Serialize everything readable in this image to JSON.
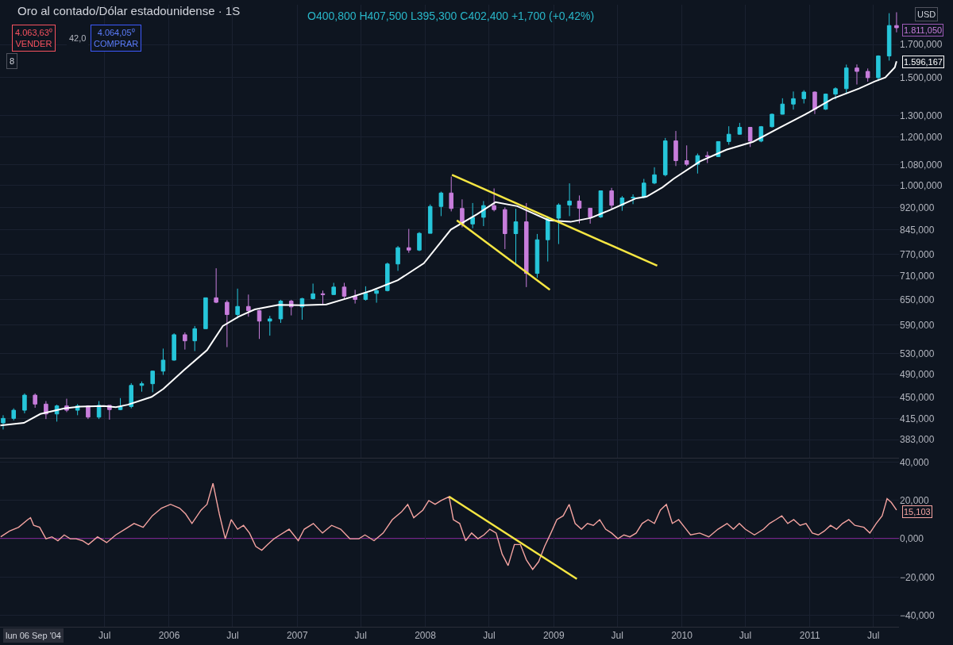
{
  "chart_data": [
    {
      "type": "candlestick",
      "title": "Oro al contado/Dólar estadounidense · 1S",
      "subtitle": "O400,800 H407,500 L395,300 C402,400 +1,700 (+0,42%)",
      "x": [
        "2004-09-15",
        "2004-10-15",
        "2004-11-15",
        "2004-12-15",
        "2005-01-15",
        "2005-02-15",
        "2005-03-15",
        "2005-04-15",
        "2005-05-15",
        "2005-06-15",
        "2005-07-15",
        "2005-08-15",
        "2005-09-15",
        "2005-10-15",
        "2005-11-15",
        "2005-12-15",
        "2006-01-15",
        "2006-02-15",
        "2006-03-15",
        "2006-04-15",
        "2006-05-15",
        "2006-06-15",
        "2006-07-15",
        "2006-08-15",
        "2006-09-15",
        "2006-10-15",
        "2006-11-15",
        "2006-12-15",
        "2007-01-15",
        "2007-02-15",
        "2007-03-15",
        "2007-04-15",
        "2007-05-15",
        "2007-06-15",
        "2007-07-15",
        "2007-08-15",
        "2007-09-15",
        "2007-10-15",
        "2007-11-15",
        "2007-12-15",
        "2008-01-15",
        "2008-02-15",
        "2008-03-15",
        "2008-04-15",
        "2008-05-15",
        "2008-06-15",
        "2008-07-15",
        "2008-08-15",
        "2008-09-15",
        "2008-10-15",
        "2008-11-15",
        "2008-12-15",
        "2009-01-15",
        "2009-02-15",
        "2009-03-15",
        "2009-04-15",
        "2009-05-15",
        "2009-06-15",
        "2009-07-15",
        "2009-08-15",
        "2009-09-15",
        "2009-10-15",
        "2009-11-15",
        "2009-12-15",
        "2010-01-15",
        "2010-02-15",
        "2010-03-15",
        "2010-04-15",
        "2010-05-15",
        "2010-06-15",
        "2010-07-15",
        "2010-08-15",
        "2010-09-15",
        "2010-10-15",
        "2010-11-15",
        "2010-12-15",
        "2011-01-15",
        "2011-02-15",
        "2011-03-15",
        "2011-04-15",
        "2011-05-15",
        "2011-06-15",
        "2011-07-15",
        "2011-08-15",
        "2011-09-05"
      ],
      "ohlc": [
        [
          408,
          420,
          398,
          415
        ],
        [
          415,
          431,
          412,
          428
        ],
        [
          428,
          456,
          423,
          453
        ],
        [
          453,
          456,
          432,
          438
        ],
        [
          438,
          443,
          414,
          422
        ],
        [
          422,
          437,
          410,
          435
        ],
        [
          435,
          447,
          425,
          428
        ],
        [
          428,
          438,
          420,
          435
        ],
        [
          435,
          436,
          414,
          417
        ],
        [
          417,
          443,
          414,
          436
        ],
        [
          436,
          436,
          413,
          429
        ],
        [
          429,
          448,
          428,
          434
        ],
        [
          434,
          474,
          431,
          470
        ],
        [
          470,
          477,
          459,
          473
        ],
        [
          473,
          497,
          458,
          496
        ],
        [
          496,
          540,
          489,
          517
        ],
        [
          517,
          572,
          516,
          569
        ],
        [
          569,
          574,
          538,
          556
        ],
        [
          556,
          588,
          535,
          582
        ],
        [
          582,
          654,
          582,
          654
        ],
        [
          654,
          731,
          641,
          643
        ],
        [
          643,
          648,
          543,
          614
        ],
        [
          614,
          677,
          605,
          633
        ],
        [
          633,
          662,
          609,
          623
        ],
        [
          623,
          625,
          560,
          599
        ],
        [
          599,
          611,
          567,
          604
        ],
        [
          604,
          649,
          595,
          646
        ],
        [
          646,
          649,
          612,
          632
        ],
        [
          632,
          654,
          602,
          652
        ],
        [
          652,
          690,
          650,
          664
        ],
        [
          664,
          672,
          636,
          662
        ],
        [
          662,
          692,
          661,
          681
        ],
        [
          681,
          692,
          651,
          658
        ],
        [
          658,
          674,
          640,
          650
        ],
        [
          650,
          683,
          647,
          665
        ],
        [
          665,
          676,
          642,
          672
        ],
        [
          672,
          747,
          670,
          743
        ],
        [
          743,
          795,
          724,
          790
        ],
        [
          790,
          848,
          775,
          783
        ],
        [
          783,
          838,
          780,
          834
        ],
        [
          834,
          930,
          834,
          923
        ],
        [
          923,
          976,
          890,
          971
        ],
        [
          971,
          1033,
          906,
          916
        ],
        [
          916,
          948,
          853,
          864
        ],
        [
          864,
          935,
          850,
          886
        ],
        [
          886,
          942,
          857,
          926
        ],
        [
          926,
          988,
          906,
          912
        ],
        [
          912,
          920,
          786,
          833
        ],
        [
          833,
          915,
          740,
          871
        ],
        [
          871,
          935,
          681,
          717
        ],
        [
          717,
          832,
          705,
          814
        ],
        [
          814,
          889,
          750,
          883
        ],
        [
          883,
          934,
          801,
          928
        ],
        [
          928,
          1007,
          890,
          942
        ],
        [
          942,
          962,
          866,
          917
        ],
        [
          917,
          918,
          865,
          887
        ],
        [
          887,
          980,
          884,
          979
        ],
        [
          979,
          990,
          914,
          927
        ],
        [
          927,
          960,
          908,
          953
        ],
        [
          953,
          966,
          931,
          955
        ],
        [
          955,
          1024,
          952,
          1008
        ],
        [
          1008,
          1070,
          1004,
          1040
        ],
        [
          1040,
          1195,
          1034,
          1182
        ],
        [
          1182,
          1227,
          1075,
          1097
        ],
        [
          1097,
          1162,
          1075,
          1082
        ],
        [
          1082,
          1127,
          1045,
          1118
        ],
        [
          1118,
          1135,
          1087,
          1114
        ],
        [
          1114,
          1180,
          1112,
          1179
        ],
        [
          1179,
          1249,
          1165,
          1212
        ],
        [
          1212,
          1265,
          1210,
          1244
        ],
        [
          1244,
          1245,
          1155,
          1181
        ],
        [
          1181,
          1250,
          1176,
          1247
        ],
        [
          1247,
          1310,
          1243,
          1307
        ],
        [
          1307,
          1388,
          1306,
          1358
        ],
        [
          1358,
          1424,
          1330,
          1386
        ],
        [
          1386,
          1431,
          1361,
          1421
        ],
        [
          1421,
          1424,
          1308,
          1332
        ],
        [
          1332,
          1413,
          1328,
          1410
        ],
        [
          1410,
          1447,
          1382,
          1439
        ],
        [
          1439,
          1576,
          1417,
          1556
        ],
        [
          1556,
          1577,
          1462,
          1536
        ],
        [
          1536,
          1553,
          1478,
          1500
        ],
        [
          1500,
          1632,
          1481,
          1628
        ],
        [
          1628,
          1913,
          1600,
          1826
        ],
        [
          1826,
          1920,
          1780,
          1811.05
        ]
      ],
      "colors": [
        "#26c6da",
        "#26c6da",
        "#26c6da",
        "#c77ddb",
        "#c77ddb",
        "#26c6da",
        "#c77ddb",
        "#26c6da",
        "#c77ddb",
        "#26c6da",
        "#c77ddb",
        "#26c6da",
        "#26c6da",
        "#26c6da",
        "#26c6da",
        "#26c6da",
        "#26c6da",
        "#c77ddb",
        "#26c6da",
        "#26c6da",
        "#c77ddb",
        "#c77ddb",
        "#26c6da",
        "#c77ddb",
        "#c77ddb",
        "#26c6da",
        "#26c6da",
        "#c77ddb",
        "#26c6da",
        "#26c6da",
        "#c77ddb",
        "#26c6da",
        "#c77ddb",
        "#c77ddb",
        "#26c6da",
        "#26c6da",
        "#26c6da",
        "#26c6da",
        "#c77ddb",
        "#26c6da",
        "#26c6da",
        "#26c6da",
        "#c77ddb",
        "#c77ddb",
        "#26c6da",
        "#26c6da",
        "#c77ddb",
        "#c77ddb",
        "#26c6da",
        "#c77ddb",
        "#26c6da",
        "#26c6da",
        "#26c6da",
        "#26c6da",
        "#c77ddb",
        "#c77ddb",
        "#26c6da",
        "#c77ddb",
        "#26c6da",
        "#26c6da",
        "#26c6da",
        "#26c6da",
        "#26c6da",
        "#c77ddb",
        "#c77ddb",
        "#26c6da",
        "#c77ddb",
        "#26c6da",
        "#26c6da",
        "#26c6da",
        "#c77ddb",
        "#26c6da",
        "#26c6da",
        "#26c6da",
        "#26c6da",
        "#26c6da",
        "#c77ddb",
        "#26c6da",
        "#26c6da",
        "#26c6da",
        "#c77ddb",
        "#c77ddb",
        "#26c6da",
        "#26c6da",
        "#c77ddb"
      ],
      "series": [
        {
          "type": "line",
          "color": "#ffffff",
          "x": [
            "2004-09-07",
            "2004-11-13",
            "2004-12-30",
            "2005-03-08",
            "2005-04-22",
            "2005-06-29",
            "2005-08-02",
            "2005-09-05",
            "2005-11-12",
            "2005-12-16",
            "2006-02-11",
            "2006-04-19",
            "2006-06-03",
            "2006-07-18",
            "2006-09-02",
            "2006-11-09",
            "2007-01-16",
            "2007-03-25",
            "2007-06-01",
            "2007-08-01",
            "2007-10-15",
            "2007-12-28",
            "2008-03-14",
            "2008-05-28",
            "2008-07-19",
            "2008-09-19",
            "2008-12-18",
            "2009-02-18",
            "2009-04-17",
            "2009-06-11",
            "2009-08-24",
            "2009-09-23",
            "2009-11-07",
            "2009-12-09",
            "2010-02-22",
            "2010-05-08",
            "2010-07-23",
            "2010-10-06",
            "2010-12-19",
            "2011-03-07",
            "2011-05-21",
            "2011-07-05",
            "2011-08-04",
            "2011-08-31",
            "2011-09-05"
          ],
          "values": [
            404,
            408,
            422,
            431,
            434,
            435,
            433,
            437,
            450,
            464,
            497,
            537,
            588,
            609,
            626,
            637,
            636,
            638,
            655,
            672,
            699,
            745,
            846,
            897,
            938,
            924,
            876,
            871,
            884,
            911,
            952,
            958,
            992,
            1025,
            1094,
            1143,
            1178,
            1242,
            1306,
            1386,
            1440,
            1479,
            1501,
            1559,
            1596.167
          ]
        },
        {
          "type": "line",
          "color": "#f5e642",
          "x": [
            "2008-03-17",
            "2009-10-23"
          ],
          "values": [
            1040,
            738
          ]
        },
        {
          "type": "line",
          "color": "#f5e642",
          "x": [
            "2008-03-31",
            "2008-12-21"
          ],
          "values": [
            876,
            674
          ]
        }
      ],
      "xlim": [
        "2004-09-06",
        "2011-09-12"
      ],
      "xticks": [
        {
          "value": "2005-07-01",
          "label": null
        },
        {
          "value": "2006-01-01",
          "label": null
        },
        {
          "value": "2006-07-01",
          "label": null
        },
        {
          "value": "2007-01-01",
          "label": null
        },
        {
          "value": "2007-07-01",
          "label": null
        },
        {
          "value": "2008-01-01",
          "label": null
        },
        {
          "value": "2008-07-01",
          "label": null
        },
        {
          "value": "2009-01-01",
          "label": null
        },
        {
          "value": "2009-07-01",
          "label": null
        },
        {
          "value": "2010-01-01",
          "label": null
        },
        {
          "value": "2010-07-01",
          "label": null
        },
        {
          "value": "2011-01-01",
          "label": null
        },
        {
          "value": "2011-07-01",
          "label": null
        }
      ],
      "ylim": [
        358,
        1975
      ],
      "log": true,
      "yticks": [
        {
          "value": 383,
          "label": "383,000"
        },
        {
          "value": 415,
          "label": "415,000"
        },
        {
          "value": 450,
          "label": "450,000"
        },
        {
          "value": 490,
          "label": "490,000"
        },
        {
          "value": 530,
          "label": "530,000"
        },
        {
          "value": 590,
          "label": "590,000"
        },
        {
          "value": 650,
          "label": "650,000"
        },
        {
          "value": 710,
          "label": "710,000"
        },
        {
          "value": 770,
          "label": "770,000"
        },
        {
          "value": 845,
          "label": "845,000"
        },
        {
          "value": 920,
          "label": "920,000"
        },
        {
          "value": 1000,
          "label": "1.000,000"
        },
        {
          "value": 1080,
          "label": "1.080,000"
        },
        {
          "value": 1200,
          "label": "1.200,000"
        },
        {
          "value": 1300,
          "label": "1.300,000"
        },
        {
          "value": 1500,
          "label": "1.500,000"
        },
        {
          "value": 1700,
          "label": "1.700,000"
        }
      ],
      "grid": true,
      "tick_labels": "y",
      "annotations": [
        "4.063,63⁰\nVENDER",
        "42,0",
        "4.064,05⁰\nCOMPRAR",
        "8",
        "USD",
        "1.811,050",
        "1.596,167"
      ]
    },
    {
      "type": "line",
      "series": [
        {
          "color": "#f4a3a0",
          "x": [
            "2004-09-08",
            "2004-10-03",
            "2004-10-29",
            "2004-11-24",
            "2004-12-02",
            "2004-12-11",
            "2004-12-28",
            "2005-01-15",
            "2005-02-01",
            "2005-02-18",
            "2005-03-08",
            "2005-03-25",
            "2005-04-11",
            "2005-04-29",
            "2005-05-16",
            "2005-06-11",
            "2005-07-07",
            "2005-08-02",
            "2005-08-28",
            "2005-09-23",
            "2005-10-19",
            "2005-11-14",
            "2005-12-10",
            "2006-01-05",
            "2006-01-31",
            "2006-02-17",
            "2006-03-07",
            "2006-04-02",
            "2006-04-19",
            "2006-05-06",
            "2006-05-24",
            "2006-06-10",
            "2006-06-27",
            "2006-07-15",
            "2006-08-01",
            "2006-08-18",
            "2006-09-05",
            "2006-09-22",
            "2006-10-09",
            "2006-10-27",
            "2006-11-13",
            "2006-12-09",
            "2007-01-04",
            "2007-01-21",
            "2007-02-16",
            "2007-03-14",
            "2007-04-09",
            "2007-05-05",
            "2007-05-31",
            "2007-06-26",
            "2007-07-13",
            "2007-08-08",
            "2007-09-03",
            "2007-09-29",
            "2007-10-25",
            "2007-11-12",
            "2007-11-29",
            "2007-12-25",
            "2008-01-11",
            "2008-01-29",
            "2008-02-15",
            "2008-03-09",
            "2008-03-21",
            "2008-04-08",
            "2008-04-25",
            "2008-05-12",
            "2008-05-30",
            "2008-06-16",
            "2008-07-03",
            "2008-07-21",
            "2008-08-07",
            "2008-08-24",
            "2008-09-11",
            "2008-09-28",
            "2008-10-15",
            "2008-11-02",
            "2008-11-19",
            "2008-12-06",
            "2008-12-24",
            "2009-01-10",
            "2009-01-28",
            "2009-02-14",
            "2009-03-03",
            "2009-03-21",
            "2009-04-07",
            "2009-04-24",
            "2009-05-12",
            "2009-05-29",
            "2009-06-15",
            "2009-07-03",
            "2009-07-20",
            "2009-08-06",
            "2009-08-24",
            "2009-09-10",
            "2009-09-27",
            "2009-10-15",
            "2009-11-01",
            "2009-11-18",
            "2009-12-05",
            "2009-12-23",
            "2010-01-09",
            "2010-01-26",
            "2010-02-21",
            "2010-03-19",
            "2010-04-14",
            "2010-05-10",
            "2010-05-28",
            "2010-06-14",
            "2010-07-01",
            "2010-07-27",
            "2010-08-22",
            "2010-09-08",
            "2010-09-26",
            "2010-10-13",
            "2010-10-30",
            "2010-11-16",
            "2010-12-04",
            "2010-12-21",
            "2011-01-08",
            "2011-01-25",
            "2011-02-11",
            "2011-03-01",
            "2011-03-18",
            "2011-04-04",
            "2011-04-22",
            "2011-05-09",
            "2011-06-04",
            "2011-06-21",
            "2011-07-09",
            "2011-07-26",
            "2011-08-09",
            "2011-08-21",
            "2011-09-05"
          ],
          "values": [
            1,
            4,
            6,
            10,
            11,
            7,
            6,
            0,
            1,
            -1,
            2,
            0,
            0,
            -1,
            -3,
            1,
            -2,
            2,
            5,
            8,
            6,
            12,
            16,
            18,
            16,
            13,
            8,
            15,
            18,
            29,
            13,
            0,
            10,
            5,
            7,
            3,
            -4,
            -6,
            -3,
            0,
            2,
            5,
            -1,
            5,
            8,
            3,
            7,
            5,
            0,
            0,
            2,
            -1,
            3,
            10,
            14,
            18,
            11,
            15,
            20,
            18,
            20,
            22,
            10,
            8,
            -1,
            3,
            0,
            2,
            5,
            3,
            -8,
            -14,
            -3,
            -3,
            -11,
            -16,
            -12,
            -4,
            3,
            10,
            12,
            18,
            8,
            5,
            8,
            7,
            10,
            5,
            3,
            0,
            2,
            1,
            3,
            8,
            10,
            8,
            15,
            18,
            8,
            10,
            6,
            2,
            3,
            1,
            5,
            8,
            5,
            8,
            5,
            2,
            5,
            8,
            10,
            12,
            8,
            10,
            7,
            8,
            3,
            2,
            4,
            7,
            5,
            8,
            10,
            7,
            6,
            3,
            8,
            12,
            21,
            19,
            15
          ]
        },
        {
          "type": "line",
          "color": "#f5e642",
          "x": [
            "2008-03-09",
            "2009-03-08"
          ],
          "values": [
            22,
            -21
          ]
        }
      ],
      "xlim": [
        "2004-09-06",
        "2011-09-12"
      ],
      "xticks": [
        {
          "value": "2005-07-01",
          "label": "Jul"
        },
        {
          "value": "2006-01-01",
          "label": "2006"
        },
        {
          "value": "2006-07-01",
          "label": "Jul"
        },
        {
          "value": "2007-01-01",
          "label": "2007"
        },
        {
          "value": "2007-07-01",
          "label": "Jul"
        },
        {
          "value": "2008-01-01",
          "label": "2008"
        },
        {
          "value": "2008-07-01",
          "label": "Jul"
        },
        {
          "value": "2009-01-01",
          "label": "2009"
        },
        {
          "value": "2009-07-01",
          "label": "Jul"
        },
        {
          "value": "2010-01-01",
          "label": "2010"
        },
        {
          "value": "2010-07-01",
          "label": "Jul"
        },
        {
          "value": "2011-01-01",
          "label": "2011"
        },
        {
          "value": "2011-07-01",
          "label": "Jul"
        }
      ],
      "ylim": [
        -46,
        40.5
      ],
      "yticks": [
        {
          "value": 40,
          "label": "40,000"
        },
        {
          "value": 20,
          "label": "20,000"
        },
        {
          "value": 0,
          "label": "0,000"
        },
        {
          "value": -20,
          "label": "−20,000"
        },
        {
          "value": -40,
          "label": "−40,000"
        }
      ],
      "grid": true,
      "ref_lines": [
        {
          "axis": "y",
          "value": 0,
          "color": "#9c27b0"
        }
      ],
      "annotations": [
        "15,103",
        "lun 06 Sep '04"
      ]
    }
  ]
}
